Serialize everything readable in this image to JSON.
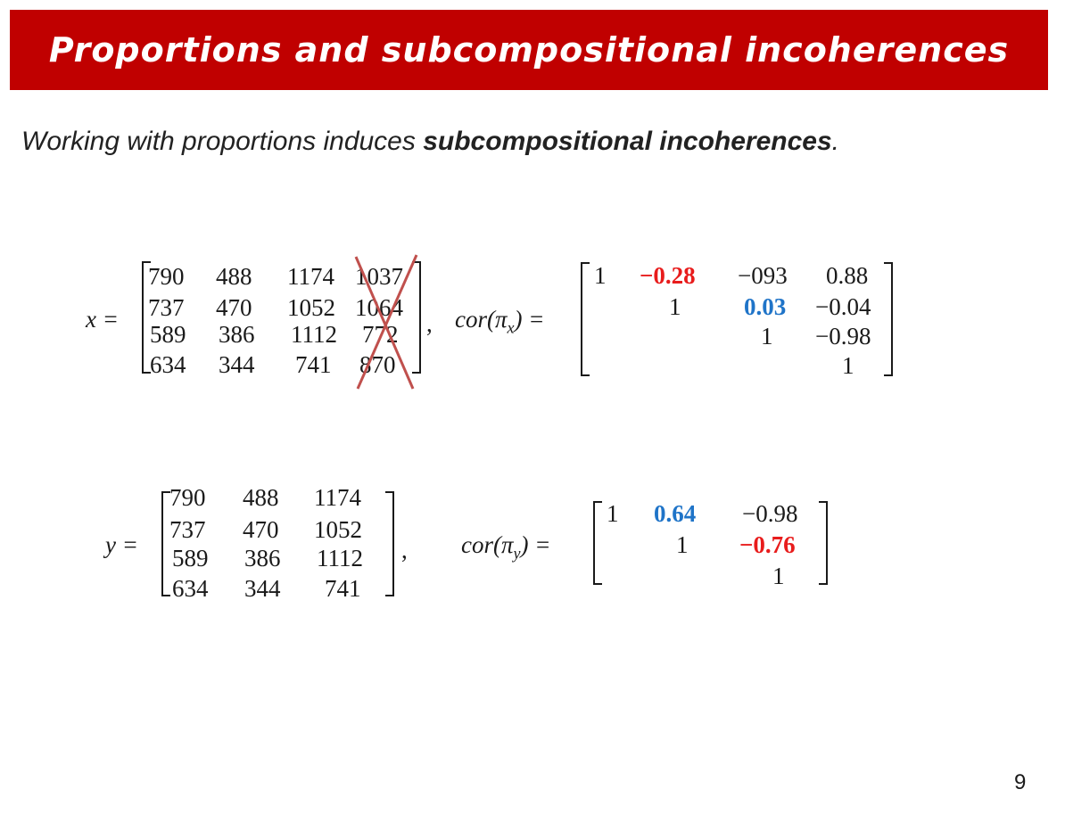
{
  "slide": {
    "title": "Proportions and subcompositional incoherences",
    "subtitle_plain": "Working with proportions induces ",
    "subtitle_bold": "subcompositional incoherences",
    "subtitle_end": ".",
    "page_number": "9"
  },
  "colors": {
    "title_bar": "#c00000",
    "highlight_red": "#e81c1c",
    "highlight_blue": "#1f74c8"
  },
  "x_matrix": {
    "label": "x =",
    "rows": [
      [
        "790",
        "488",
        "1174",
        "1037"
      ],
      [
        "737",
        "470",
        "1052",
        "1064"
      ],
      [
        "589",
        "386",
        "1112",
        "772"
      ],
      [
        "634",
        "344",
        "741",
        "870"
      ]
    ],
    "trailing": ","
  },
  "cor_x": {
    "label": "cor(π",
    "label_sub": "x",
    "label_end": ") =",
    "rows": [
      [
        "1",
        "−0.28",
        "−093",
        "0.88"
      ],
      [
        "",
        "1",
        "0.03",
        "−0.04"
      ],
      [
        "",
        "",
        "1",
        "−0.98"
      ],
      [
        "",
        "",
        "",
        "1"
      ]
    ]
  },
  "y_matrix": {
    "label": "y =",
    "rows": [
      [
        "790",
        "488",
        "1174"
      ],
      [
        "737",
        "470",
        "1052"
      ],
      [
        "589",
        "386",
        "1112"
      ],
      [
        "634",
        "344",
        "741"
      ]
    ],
    "trailing": ","
  },
  "cor_y": {
    "label": "cor(π",
    "label_sub": "y",
    "label_end": ") =",
    "rows": [
      [
        "1",
        "0.64",
        "−0.98"
      ],
      [
        "",
        "1",
        "−0.76"
      ],
      [
        "",
        "",
        "1"
      ]
    ]
  }
}
